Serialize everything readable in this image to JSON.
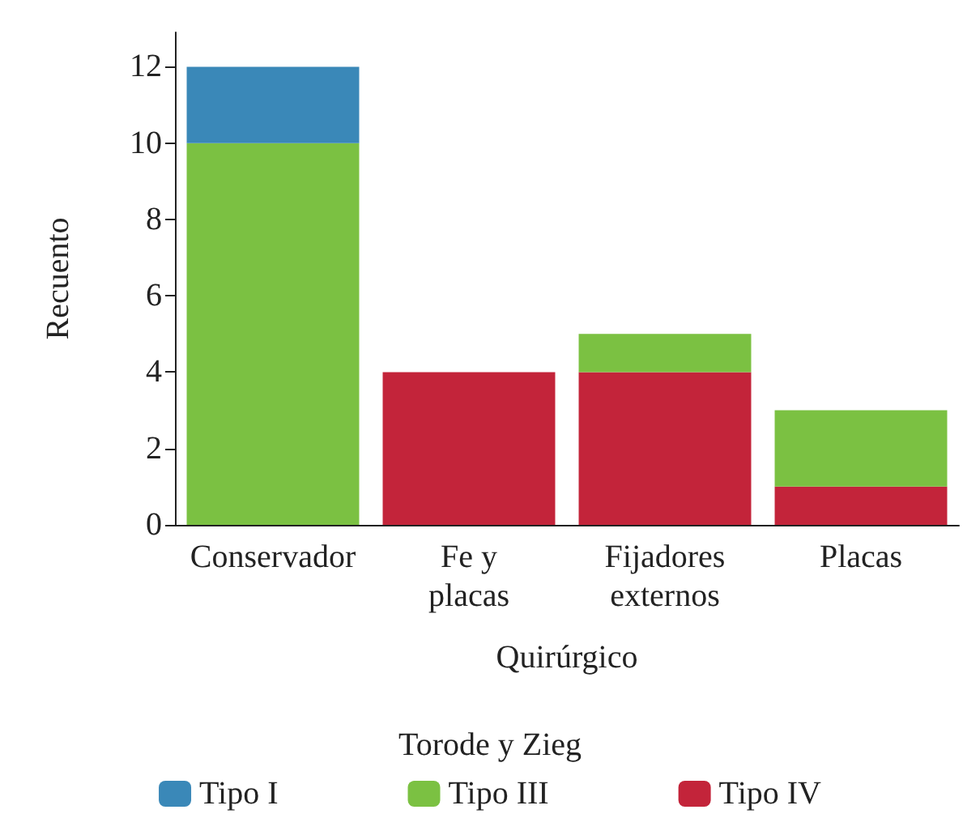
{
  "chart_data": {
    "type": "bar",
    "stacked": true,
    "xlabel": "Quirúrgico",
    "ylabel": "Recuento",
    "legend_title": "Torode y Zieg",
    "legend": "bottom",
    "grid": false,
    "categories": [
      "Conservador",
      "Fe y\nplacas",
      "Fijadores\nexternos",
      "Placas"
    ],
    "ylim": [
      0,
      12.9
    ],
    "yticks": [
      0,
      2,
      4,
      6,
      8,
      10,
      12
    ],
    "series": [
      {
        "name": "Tipo IV",
        "color": "#c3243a",
        "values": [
          0,
          4,
          4,
          1
        ]
      },
      {
        "name": "Tipo III",
        "color": "#7bc142",
        "values": [
          10,
          0,
          1,
          2
        ]
      },
      {
        "name": "Tipo I",
        "color": "#3a88b8",
        "values": [
          2,
          0,
          0,
          0
        ]
      }
    ]
  }
}
